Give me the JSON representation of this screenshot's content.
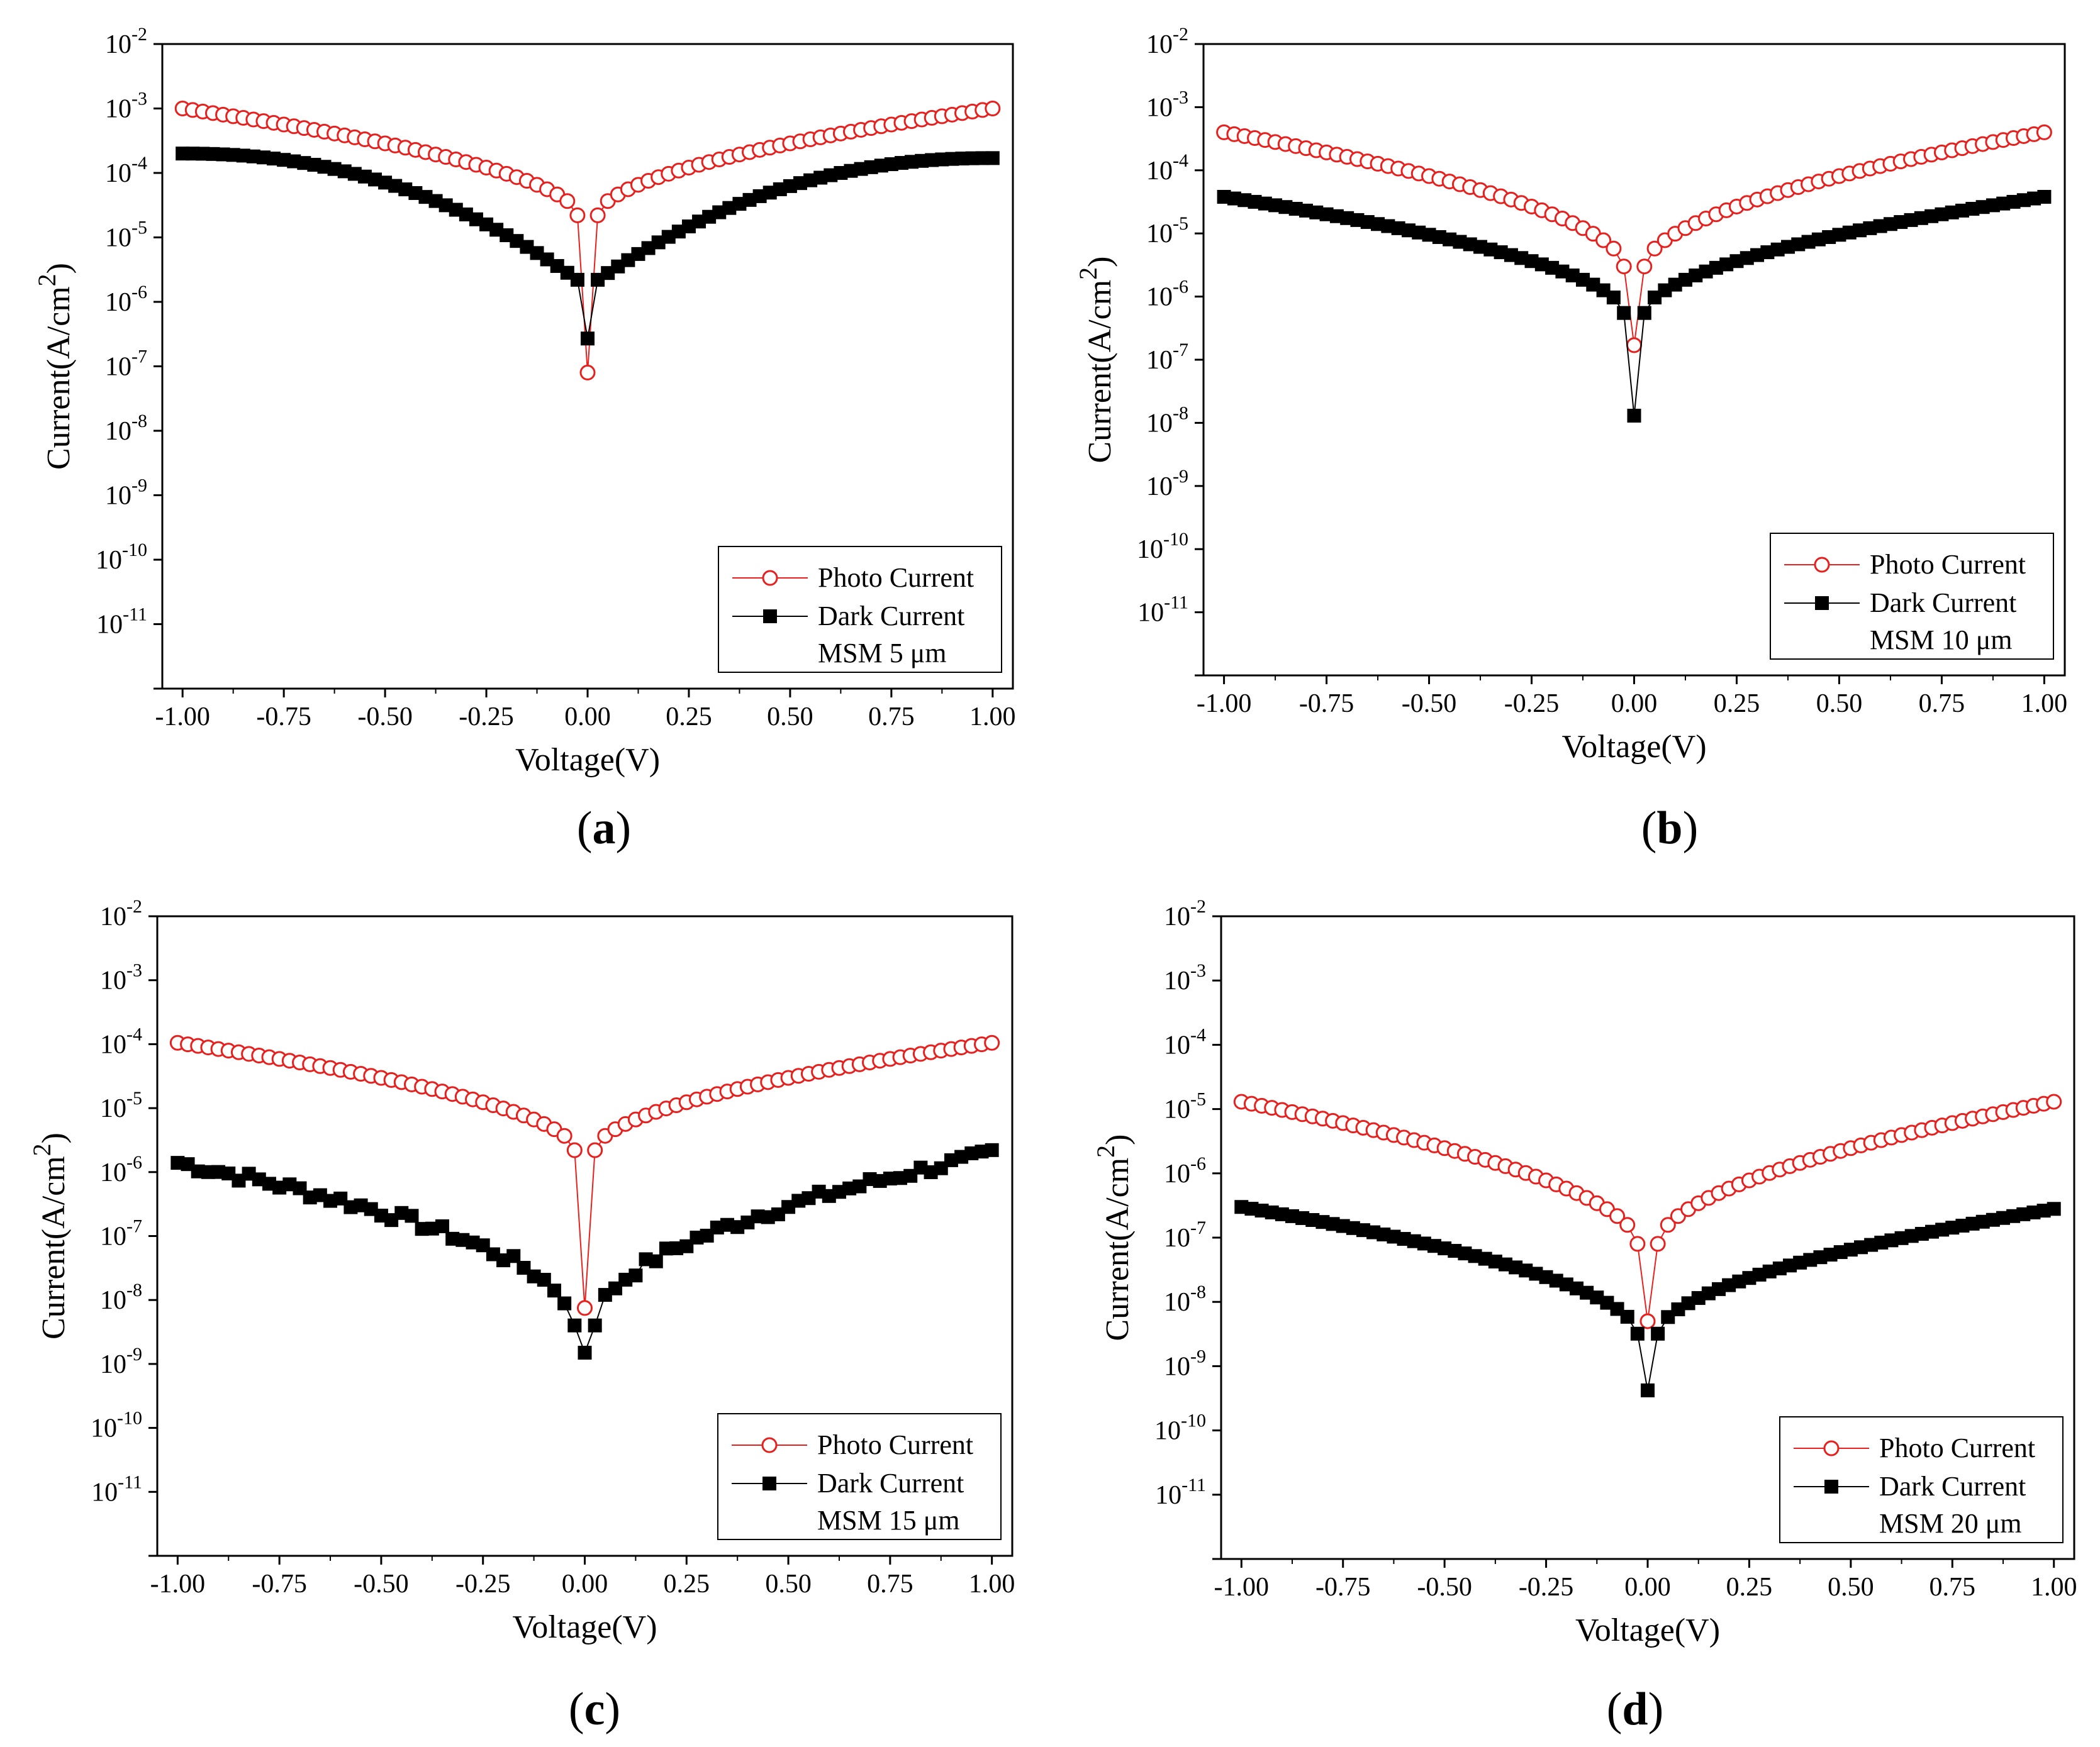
{
  "figure": {
    "x_tick_labels": [
      "-1.00",
      "-0.75",
      "-0.50",
      "-0.25",
      "0.00",
      "0.25",
      "0.50",
      "0.75",
      "1.00"
    ],
    "y_tick_exponents": [
      "-11",
      "-10",
      "-9",
      "-8",
      "-7",
      "-6",
      "-5",
      "-4",
      "-3",
      "-2"
    ],
    "y_tick_base": "10",
    "colors": {
      "photo": "#e8201d",
      "dark": "#000000"
    }
  },
  "chart_data": [
    {
      "type": "line",
      "panel_label": "a",
      "title": "",
      "xlabel": "Voltage(V)",
      "ylabel": "Current(A/cm2)",
      "ylabel_main": "Current(A/cm",
      "ylabel_sup": "2",
      "ylabel_close": ")",
      "yscale": "log",
      "xlim": [
        -1.05,
        1.05
      ],
      "ylim_exp": [
        -12,
        -2
      ],
      "legend": {
        "photo": "Photo Current",
        "dark": "Dark Current",
        "note": "MSM 5 μm",
        "position": "bottom-right"
      },
      "series": [
        {
          "name": "Photo Current",
          "marker": "open-circle",
          "color": "#e8201d",
          "edge_value": 0.001,
          "v_shape": 0.55,
          "near_zero": [
            2.2e-05,
            8e-08
          ]
        },
        {
          "name": "Dark Current",
          "marker": "filled-square",
          "color": "#000000",
          "edge_value": 0.0002,
          "right_edge_value": 0.00017,
          "v_shape": 0.5,
          "plateau": true,
          "near_zero": [
            2.2e-06,
            2.7e-07
          ]
        }
      ]
    },
    {
      "type": "line",
      "panel_label": "b",
      "title": "",
      "xlabel": "Voltage(V)",
      "ylabel": "Current(A/cm2)",
      "ylabel_main": "Current(A/cm",
      "ylabel_sup": "2",
      "ylabel_close": ")",
      "yscale": "log",
      "xlim": [
        -1.05,
        1.05
      ],
      "ylim_exp": [
        -12,
        -2
      ],
      "legend": {
        "photo": "Photo Current",
        "dark": "Dark Current",
        "note": "MSM 10 μm",
        "position": "bottom-right"
      },
      "series": [
        {
          "name": "Photo Current",
          "marker": "open-circle",
          "color": "#e8201d",
          "edge_value": 0.0004,
          "v_shape": 0.55,
          "near_zero": [
            3e-06,
            1.7e-07
          ]
        },
        {
          "name": "Dark Current",
          "marker": "filled-square",
          "color": "#000000",
          "edge_value": 3.8e-05,
          "v_shape": 0.55,
          "near_zero": [
            5.5e-07,
            1.3e-08
          ]
        }
      ]
    },
    {
      "type": "line",
      "panel_label": "c",
      "title": "",
      "xlabel": "Voltage(V)",
      "ylabel": "Current(A/cm2)",
      "ylabel_main": "Current(A/cm",
      "ylabel_sup": "2",
      "ylabel_close": ")",
      "yscale": "log",
      "xlim": [
        -1.05,
        1.05
      ],
      "ylim_exp": [
        -12,
        -2
      ],
      "legend": {
        "photo": "Photo Current",
        "dark": "Dark Current",
        "note": "MSM 15 μm",
        "position": "bottom-right"
      },
      "series": [
        {
          "name": "Photo Current",
          "marker": "open-circle",
          "color": "#e8201d",
          "edge_value": 0.000105,
          "v_shape": 0.55,
          "near_zero": [
            2.2e-06,
            7.5e-09
          ]
        },
        {
          "name": "Dark Current",
          "marker": "filled-square",
          "color": "#000000",
          "edge_value": 1.4e-06,
          "right_edge_value": 1.9e-06,
          "v_shape": 0.5,
          "noisy": true,
          "near_zero": [
            4e-09,
            1.5e-09
          ]
        }
      ]
    },
    {
      "type": "line",
      "panel_label": "d",
      "title": "",
      "xlabel": "Voltage(V)",
      "ylabel": "Current(A/cm2)",
      "ylabel_main": "Current(A/cm",
      "ylabel_sup": "2",
      "ylabel_close": ")",
      "yscale": "log",
      "xlim": [
        -1.05,
        1.05
      ],
      "ylim_exp": [
        -12,
        -2
      ],
      "legend": {
        "photo": "Photo Current",
        "dark": "Dark Current",
        "note": "MSM 20 μm",
        "position": "bottom-right"
      },
      "series": [
        {
          "name": "Photo Current",
          "marker": "open-circle",
          "color": "#e8201d",
          "edge_value": 1.3e-05,
          "v_shape": 0.55,
          "near_zero": [
            8e-08,
            5e-09
          ]
        },
        {
          "name": "Dark Current",
          "marker": "filled-square",
          "color": "#000000",
          "edge_value": 3e-07,
          "right_edge_value": 2.8e-07,
          "v_shape": 0.55,
          "near_zero": [
            3.2e-09,
            4.2e-10
          ]
        }
      ]
    }
  ]
}
